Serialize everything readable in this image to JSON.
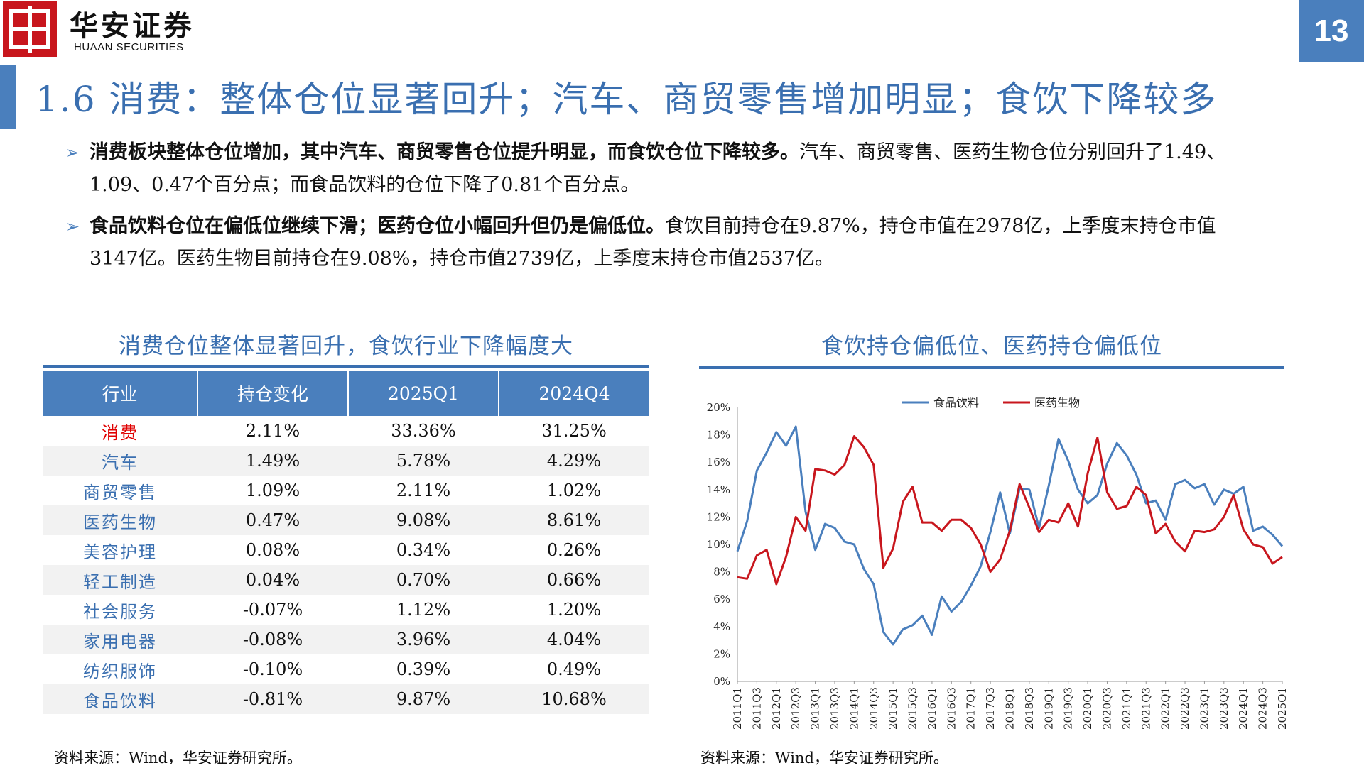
{
  "header": {
    "brand_cn": "华安证券",
    "brand_en": "HUAAN SECURITIES",
    "page_number": "13"
  },
  "title": "1.6 消费：整体仓位显著回升；汽车、商贸零售增加明显；食饮下降较多",
  "bullets": [
    {
      "bold": "消费板块整体仓位增加，其中汽车、商贸零售仓位提升明显，而食饮仓位下降较多。",
      "text": "汽车、商贸零售、医药生物仓位分别回升了1.49、1.09、0.47个百分点；而食品饮料的仓位下降了0.81个百分点。"
    },
    {
      "bold": "食品饮料仓位在偏低位继续下滑；医药仓位小幅回升但仍是偏低位。",
      "text": "食饮目前持仓在9.87%，持仓市值在2978亿，上季度末持仓市值3147亿。医药生物目前持仓在9.08%，持仓市值2739亿，上季度末持仓市值2537亿。"
    }
  ],
  "table_section": {
    "title": "消费仓位整体显著回升，食饮行业下降幅度大",
    "headers": [
      "行业",
      "持仓变化",
      "2025Q1",
      "2024Q4"
    ],
    "rows": [
      {
        "industry": "消费",
        "change": "2.11%",
        "q1_2025": "33.36%",
        "q4_2024": "31.25%"
      },
      {
        "industry": "汽车",
        "change": "1.49%",
        "q1_2025": "5.78%",
        "q4_2024": "4.29%"
      },
      {
        "industry": "商贸零售",
        "change": "1.09%",
        "q1_2025": "2.11%",
        "q4_2024": "1.02%"
      },
      {
        "industry": "医药生物",
        "change": "0.47%",
        "q1_2025": "9.08%",
        "q4_2024": "8.61%"
      },
      {
        "industry": "美容护理",
        "change": "0.08%",
        "q1_2025": "0.34%",
        "q4_2024": "0.26%"
      },
      {
        "industry": "轻工制造",
        "change": "0.04%",
        "q1_2025": "0.70%",
        "q4_2024": "0.66%"
      },
      {
        "industry": "社会服务",
        "change": "-0.07%",
        "q1_2025": "1.12%",
        "q4_2024": "1.20%"
      },
      {
        "industry": "家用电器",
        "change": "-0.08%",
        "q1_2025": "3.96%",
        "q4_2024": "4.04%"
      },
      {
        "industry": "纺织服饰",
        "change": "-0.10%",
        "q1_2025": "0.39%",
        "q4_2024": "0.49%"
      },
      {
        "industry": "食品饮料",
        "change": "-0.81%",
        "q1_2025": "9.87%",
        "q4_2024": "10.68%"
      }
    ],
    "source": "资料来源：Wind，华安证券研究所。"
  },
  "chart_section": {
    "title": "食饮持仓偏低位、医药持仓偏低位",
    "source": "资料来源：Wind，华安证券研究所。"
  },
  "chart_data": {
    "type": "line",
    "title": "食饮持仓偏低位、医药持仓偏低位",
    "xlabel": "",
    "ylabel": "",
    "ylim": [
      0,
      20
    ],
    "yticks": [
      "0%",
      "2%",
      "4%",
      "6%",
      "8%",
      "10%",
      "12%",
      "14%",
      "16%",
      "18%",
      "20%"
    ],
    "legend_position": "top-center",
    "grid": false,
    "x": [
      "2011Q1",
      "2011Q2",
      "2011Q3",
      "2011Q4",
      "2012Q1",
      "2012Q2",
      "2012Q3",
      "2012Q4",
      "2013Q1",
      "2013Q2",
      "2013Q3",
      "2013Q4",
      "2014Q1",
      "2014Q2",
      "2014Q3",
      "2014Q4",
      "2015Q1",
      "2015Q2",
      "2015Q3",
      "2015Q4",
      "2016Q1",
      "2016Q2",
      "2016Q3",
      "2016Q4",
      "2017Q1",
      "2017Q2",
      "2017Q3",
      "2017Q4",
      "2018Q1",
      "2018Q2",
      "2018Q3",
      "2018Q4",
      "2019Q1",
      "2019Q2",
      "2019Q3",
      "2019Q4",
      "2020Q1",
      "2020Q2",
      "2020Q3",
      "2020Q4",
      "2021Q1",
      "2021Q2",
      "2021Q3",
      "2021Q4",
      "2022Q1",
      "2022Q2",
      "2022Q3",
      "2022Q4",
      "2023Q1",
      "2023Q2",
      "2023Q3",
      "2023Q4",
      "2024Q1",
      "2024Q2",
      "2024Q3",
      "2024Q4",
      "2025Q1"
    ],
    "xtick_labels": [
      "2011Q1",
      "2011Q3",
      "2012Q1",
      "2012Q3",
      "2013Q1",
      "2013Q3",
      "2014Q1",
      "2014Q3",
      "2015Q1",
      "2015Q3",
      "2016Q1",
      "2016Q3",
      "2017Q1",
      "2017Q3",
      "2018Q1",
      "2018Q3",
      "2019Q1",
      "2019Q3",
      "2020Q1",
      "2020Q3",
      "2021Q1",
      "2021Q3",
      "2022Q1",
      "2022Q3",
      "2023Q1",
      "2023Q3",
      "2024Q1",
      "2024Q3",
      "2025Q1"
    ],
    "series": [
      {
        "name": "食品饮料",
        "color": "#4a7fbd",
        "values": [
          9.5,
          11.7,
          15.4,
          16.7,
          18.2,
          17.2,
          18.6,
          12.4,
          9.6,
          11.5,
          11.2,
          10.2,
          10.0,
          8.2,
          7.1,
          3.6,
          2.7,
          3.8,
          4.1,
          4.8,
          3.4,
          6.2,
          5.1,
          5.8,
          7.0,
          8.4,
          10.9,
          13.8,
          10.8,
          14.1,
          14.0,
          11.2,
          14.3,
          17.7,
          16.1,
          14.0,
          13.0,
          13.6,
          15.9,
          17.4,
          16.5,
          15.1,
          13.0,
          13.2,
          11.8,
          14.4,
          14.7,
          14.1,
          14.4,
          12.9,
          14.0,
          13.7,
          14.2,
          11.0,
          11.3,
          10.7,
          9.87
        ]
      },
      {
        "name": "医药生物",
        "color": "#c8161d",
        "values": [
          7.6,
          7.5,
          9.2,
          9.6,
          7.1,
          9.1,
          12.0,
          11.0,
          15.5,
          15.4,
          15.1,
          15.8,
          17.9,
          17.1,
          15.8,
          8.3,
          9.7,
          13.1,
          14.2,
          11.6,
          11.6,
          11.0,
          11.8,
          11.8,
          11.2,
          10.0,
          8.0,
          8.9,
          11.0,
          14.4,
          12.7,
          10.9,
          11.8,
          11.6,
          13.0,
          11.3,
          15.2,
          17.8,
          13.8,
          12.6,
          12.8,
          14.2,
          13.6,
          10.8,
          11.5,
          10.2,
          9.5,
          11.0,
          10.9,
          11.1,
          12.0,
          13.6,
          11.1,
          10.0,
          9.8,
          8.6,
          9.08
        ]
      }
    ]
  }
}
